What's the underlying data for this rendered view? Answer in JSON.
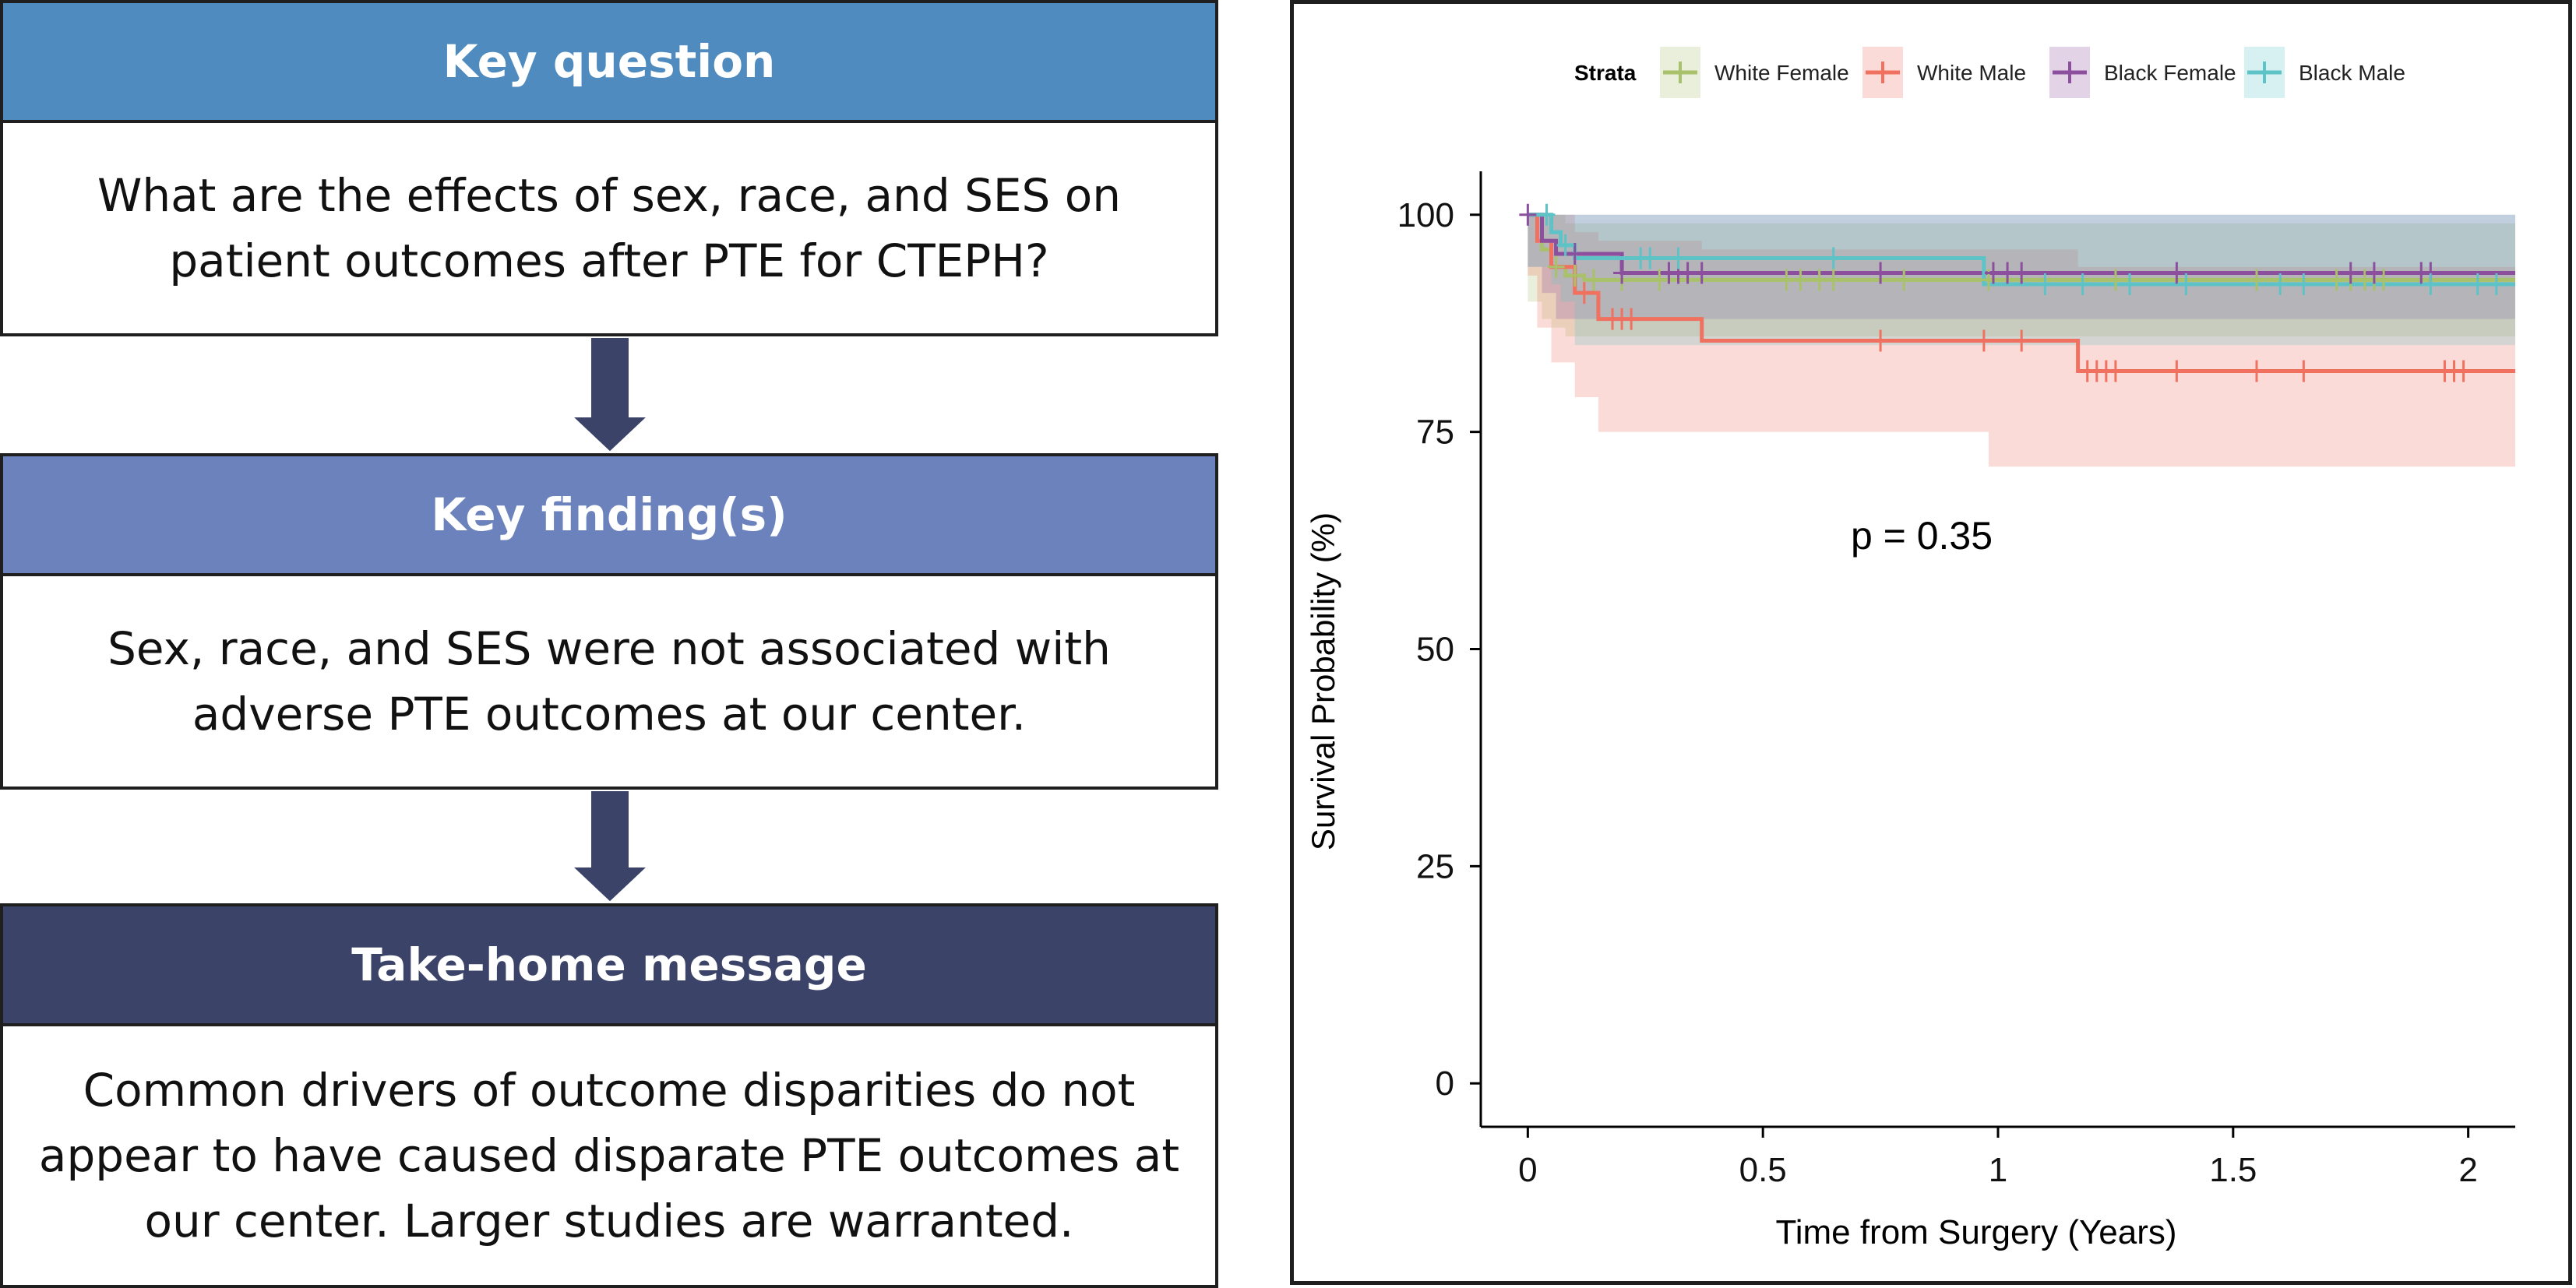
{
  "panel": {
    "q_title": "Key question",
    "q_text": "What are the effects of sex, race, and SES on patient outcomes after PTE for CTEPH?",
    "f_title": "Key finding(s)",
    "f_text": "Sex, race, and SES were not associated with adverse PTE outcomes at our center.",
    "t_title": "Take-home message",
    "t_text": "Common drivers of outcome disparities do not appear to have caused disparate PTE outcomes at our center. Larger studies are warranted.",
    "colors": {
      "q": "#4f8bbf",
      "f": "#6b82bd",
      "t": "#3b4468",
      "arrow": "#3b4468"
    }
  },
  "chart_data": {
    "type": "line",
    "subtype": "kaplan-meier",
    "xlabel": "Time from Surgery (Years)",
    "ylabel": "Survival Probability (%)",
    "xticks": [
      "0",
      "0.5",
      "1",
      "1.5",
      "2"
    ],
    "yticks": [
      "0",
      "25",
      "50",
      "75",
      "100"
    ],
    "xlim": [
      -0.1,
      2.1
    ],
    "ylim": [
      -5,
      105
    ],
    "legend_title": "Strata",
    "legend_position": "top",
    "annotation": "p = 0.35",
    "series": [
      {
        "name": "White Female",
        "color": "#a9c16a",
        "x": [
          0,
          0.03,
          0.05,
          0.08,
          0.12,
          2.1
        ],
        "y": [
          100,
          96,
          94,
          93,
          92.5,
          92.5
        ],
        "lower": [
          100,
          90,
          88,
          87,
          86,
          86
        ],
        "upper": [
          100,
          100,
          100,
          99,
          99,
          99
        ],
        "censor_x": [
          0.06,
          0.1,
          0.14,
          0.2,
          0.28,
          0.55,
          0.58,
          0.62,
          0.65,
          0.8,
          0.98,
          1.25,
          1.55,
          1.72,
          1.75,
          1.78,
          1.8,
          1.82
        ]
      },
      {
        "name": "White Male",
        "color": "#f0715f",
        "x": [
          0,
          0.02,
          0.05,
          0.1,
          0.15,
          0.37,
          0.98,
          1.17,
          2.1
        ],
        "y": [
          100,
          97,
          94,
          91,
          88,
          85.5,
          85.5,
          82,
          82
        ],
        "lower": [
          100,
          93,
          87,
          83,
          79,
          75,
          75,
          71,
          71
        ],
        "upper": [
          100,
          100,
          100,
          98,
          97,
          96,
          96,
          94,
          94
        ],
        "censor_x": [
          0.12,
          0.18,
          0.2,
          0.22,
          0.75,
          0.97,
          1.05,
          1.19,
          1.21,
          1.23,
          1.25,
          1.38,
          1.55,
          1.65,
          1.95,
          1.97,
          1.99
        ]
      },
      {
        "name": "Black Female",
        "color": "#8b4f9e",
        "x": [
          0,
          0.03,
          0.06,
          0.2,
          2.1
        ],
        "y": [
          100,
          97,
          95.5,
          93.3,
          93.3
        ],
        "lower": [
          100,
          94,
          91,
          88,
          88
        ],
        "upper": [
          100,
          100,
          100,
          100,
          100
        ],
        "censor_x": [
          0,
          0.1,
          0.2,
          0.3,
          0.32,
          0.34,
          0.37,
          0.75,
          0.99,
          1.02,
          1.05,
          1.38,
          1.75,
          1.8,
          1.9,
          1.92
        ]
      },
      {
        "name": "Black Male",
        "color": "#5ec3c7",
        "x": [
          0,
          0.05,
          0.07,
          0.1,
          0.97,
          2.1
        ],
        "y": [
          100,
          98,
          96.5,
          95,
          92,
          92
        ],
        "lower": [
          100,
          94,
          92,
          90,
          85,
          85
        ],
        "upper": [
          100,
          100,
          100,
          100,
          100,
          100
        ],
        "censor_x": [
          0.04,
          0.08,
          0.24,
          0.26,
          0.32,
          0.65,
          1.1,
          1.18,
          1.28,
          1.4,
          1.6,
          1.65,
          1.92,
          2.02,
          2.06
        ]
      }
    ]
  }
}
